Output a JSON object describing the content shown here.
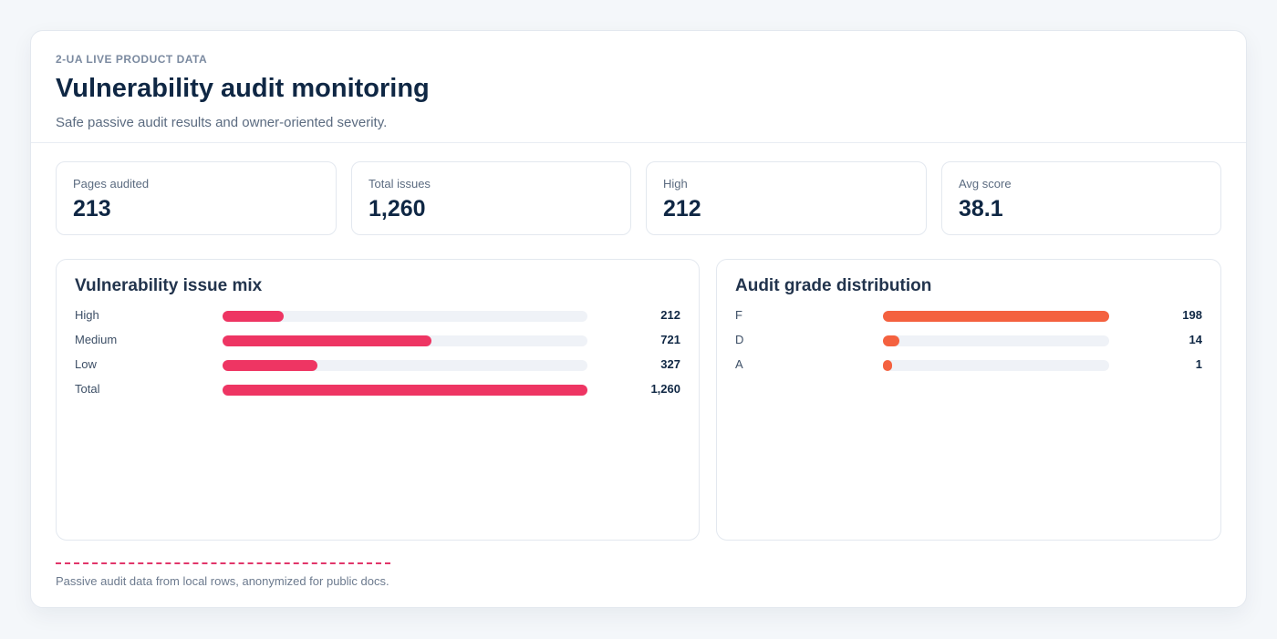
{
  "header": {
    "eyebrow": "2-UA LIVE PRODUCT DATA",
    "title": "Vulnerability audit monitoring",
    "subtitle": "Safe passive audit results and owner-oriented severity."
  },
  "stats": [
    {
      "label": "Pages audited",
      "value": "213"
    },
    {
      "label": "Total issues",
      "value": "1,260"
    },
    {
      "label": "High",
      "value": "212"
    },
    {
      "label": "Avg score",
      "value": "38.1"
    }
  ],
  "issue_mix": {
    "title": "Vulnerability issue mix",
    "color": "#ee3563",
    "rows": [
      {
        "label": "High",
        "value": 212,
        "display": "212"
      },
      {
        "label": "Medium",
        "value": 721,
        "display": "721"
      },
      {
        "label": "Low",
        "value": 327,
        "display": "327"
      },
      {
        "label": "Total",
        "value": 1260,
        "display": "1,260"
      }
    ]
  },
  "grade_distribution": {
    "title": "Audit grade distribution",
    "color": "#f4613f",
    "rows": [
      {
        "label": "F",
        "value": 198,
        "display": "198"
      },
      {
        "label": "D",
        "value": 14,
        "display": "14"
      },
      {
        "label": "A",
        "value": 1,
        "display": "1"
      }
    ]
  },
  "footer": {
    "note": "Passive audit data from local rows, anonymized for public docs.",
    "accent_color": "#e1356a"
  }
}
